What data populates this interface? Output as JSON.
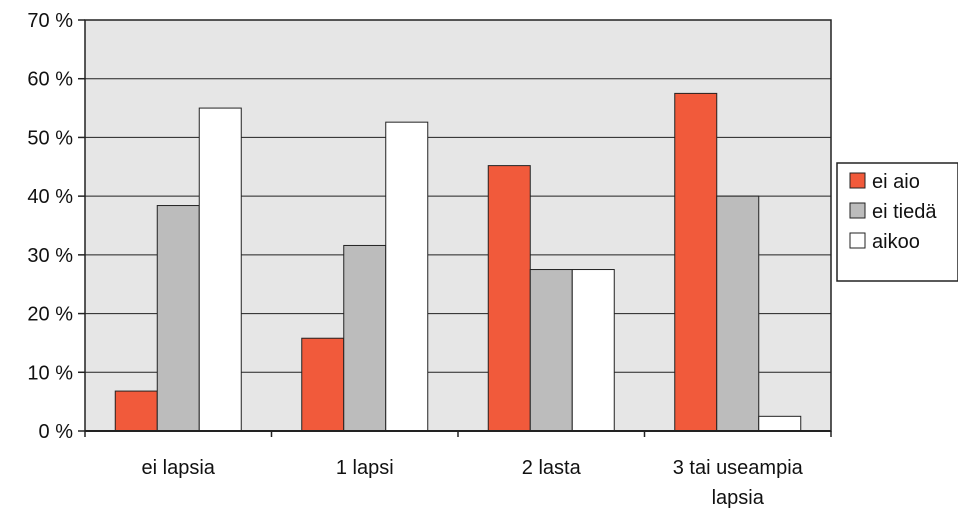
{
  "chart_data": {
    "type": "bar",
    "title": "",
    "xlabel": "",
    "ylabel": "",
    "categories": [
      "ei lapsia",
      "1 lapsi",
      "2 lasta",
      "3 tai useampia lapsia"
    ],
    "y_ticks": [
      "0 %",
      "10 %",
      "20 %",
      "30 %",
      "40 %",
      "50 %",
      "60 %",
      "70 %"
    ],
    "ylim": [
      0,
      70
    ],
    "grid": true,
    "legend_position": "right",
    "series": [
      {
        "name": "ei aio",
        "color": "#f15a3b",
        "values": [
          6.8,
          15.8,
          45.2,
          57.5
        ]
      },
      {
        "name": "ei tiedä",
        "color": "#bcbcbc",
        "values": [
          38.4,
          31.6,
          27.5,
          40.0
        ]
      },
      {
        "name": "aikoo",
        "color": "#ffffff",
        "values": [
          55.0,
          52.6,
          27.5,
          2.5
        ]
      }
    ],
    "plot_background": "#e6e6e6"
  }
}
